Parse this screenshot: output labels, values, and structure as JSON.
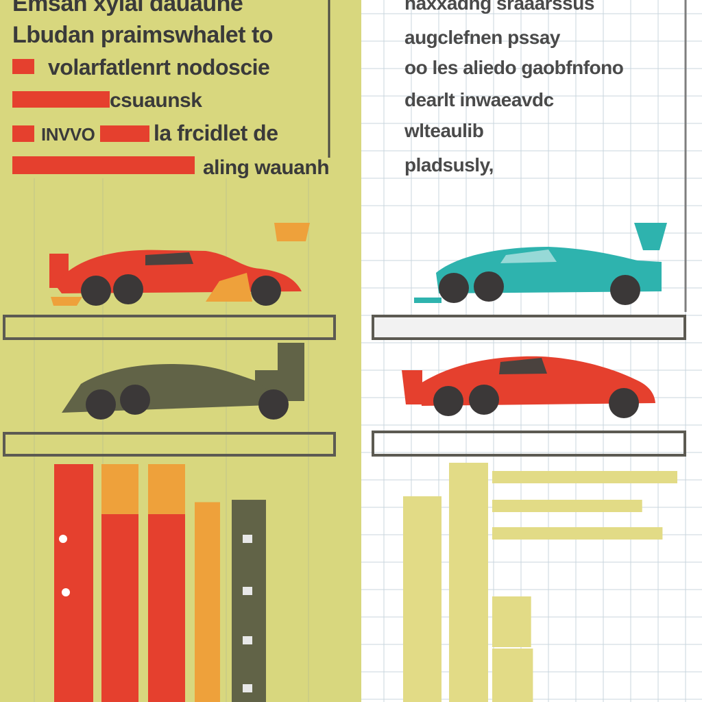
{
  "colors": {
    "left_bg": "#D8D77E",
    "right_bg": "#FFFFFF",
    "grid": "#C9D6DE",
    "red": "#E5402E",
    "orange": "#EEA13B",
    "olive": "#616347",
    "teal": "#2EB3AE",
    "pale_yellow": "#E2DB86",
    "text": "#3A3A3A",
    "wheel": "#3B3838",
    "shelf": "#5C5A52"
  },
  "left_panel": {
    "title": "Emsan xylal dauaune",
    "subtitle": "Lbudan praimswhalet to",
    "legend": [
      {
        "label": "volarfatlenrt nodoscie",
        "color_key": "red"
      },
      {
        "label": "csuaunsk",
        "color_key": "red"
      },
      {
        "label": "INVVO",
        "color_key": "red"
      },
      {
        "label": "la frcidlet de",
        "color_key": "red"
      },
      {
        "label": "aling wauanh",
        "color_key": "red"
      }
    ]
  },
  "right_panel": {
    "title": "haxxadng sraaarssus",
    "lines": [
      "augclefnen pssay",
      "oo les aliedo gaobfnfono",
      "dearlt inwaeavdc",
      "wlteaulib",
      "pladsusly,"
    ]
  },
  "cars": [
    {
      "id": "car-red-left",
      "color_key": "red"
    },
    {
      "id": "car-olive-left",
      "color_key": "olive"
    },
    {
      "id": "car-teal-right",
      "color_key": "teal"
    },
    {
      "id": "car-red-right",
      "color_key": "red"
    }
  ],
  "chart_data": [
    {
      "type": "bar",
      "orientation": "vertical",
      "series": [
        {
          "values": [
            100,
            79,
            79,
            0,
            0
          ],
          "color_key": "red"
        },
        {
          "values": [
            0,
            21,
            21,
            84,
            0
          ],
          "color_key": "orange"
        },
        {
          "values": [
            0,
            0,
            0,
            0,
            85
          ],
          "color_key": "olive"
        }
      ],
      "categories": [
        "",
        "",
        "",
        "",
        ""
      ],
      "ylim": [
        0,
        100
      ],
      "grid": true
    },
    {
      "type": "bar",
      "orientation": "vertical",
      "series": [
        {
          "values": [
            86,
            100
          ],
          "color_key": "pale_yellow"
        }
      ],
      "categories": [
        "",
        ""
      ],
      "ylim": [
        0,
        100
      ],
      "grid": true
    },
    {
      "type": "bar",
      "orientation": "horizontal",
      "series": [
        {
          "values": [
            100,
            81,
            92,
            21,
            22
          ],
          "color_key": "pale_yellow"
        }
      ],
      "categories": [
        "",
        "",
        "",
        "",
        ""
      ],
      "xlim": [
        0,
        100
      ],
      "grid": true
    }
  ]
}
